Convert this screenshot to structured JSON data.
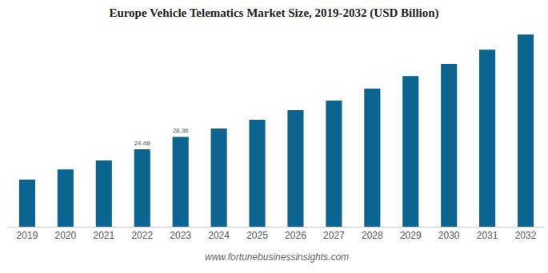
{
  "chart_data": {
    "type": "bar",
    "title": "Europe Vehicle Telematics Market Size, 2019-2032 (USD Billion)",
    "source": "www.fortunebusinessinsights.com",
    "categories": [
      "2019",
      "2020",
      "2021",
      "2022",
      "2023",
      "2024",
      "2025",
      "2026",
      "2027",
      "2028",
      "2029",
      "2030",
      "2031",
      "2032"
    ],
    "values": [
      14.9,
      18.1,
      20.9,
      24.48,
      28.36,
      31.0,
      33.8,
      36.8,
      39.8,
      43.6,
      47.6,
      51.4,
      55.9,
      60.7
    ],
    "value_labels": [
      null,
      null,
      null,
      "24.48",
      "28.36",
      null,
      null,
      null,
      null,
      null,
      null,
      null,
      null,
      null
    ],
    "color": "#0b6590",
    "ylim": [
      0,
      61.5
    ],
    "grid": false,
    "tick_labels": "x"
  }
}
